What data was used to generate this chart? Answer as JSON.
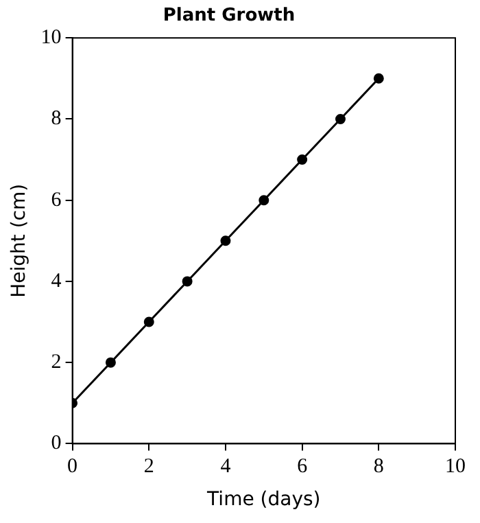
{
  "chart_data": {
    "type": "line",
    "title": "Plant Growth",
    "xlabel": "Time (days)",
    "ylabel": "Height (cm)",
    "x": [
      0,
      1,
      2,
      3,
      4,
      5,
      6,
      7,
      8
    ],
    "series": [
      {
        "color": "#000000",
        "values": [
          1,
          2,
          3,
          4,
          5,
          6,
          7,
          8,
          9
        ]
      }
    ],
    "xlim": [
      0,
      10
    ],
    "xticks": [
      0,
      2,
      4,
      6,
      8,
      10
    ],
    "ylim": [
      0,
      10
    ],
    "yticks": [
      0,
      2,
      4,
      6,
      8,
      10
    ],
    "grid": false,
    "legend": false,
    "marker": "circle",
    "line_style": "solid"
  }
}
